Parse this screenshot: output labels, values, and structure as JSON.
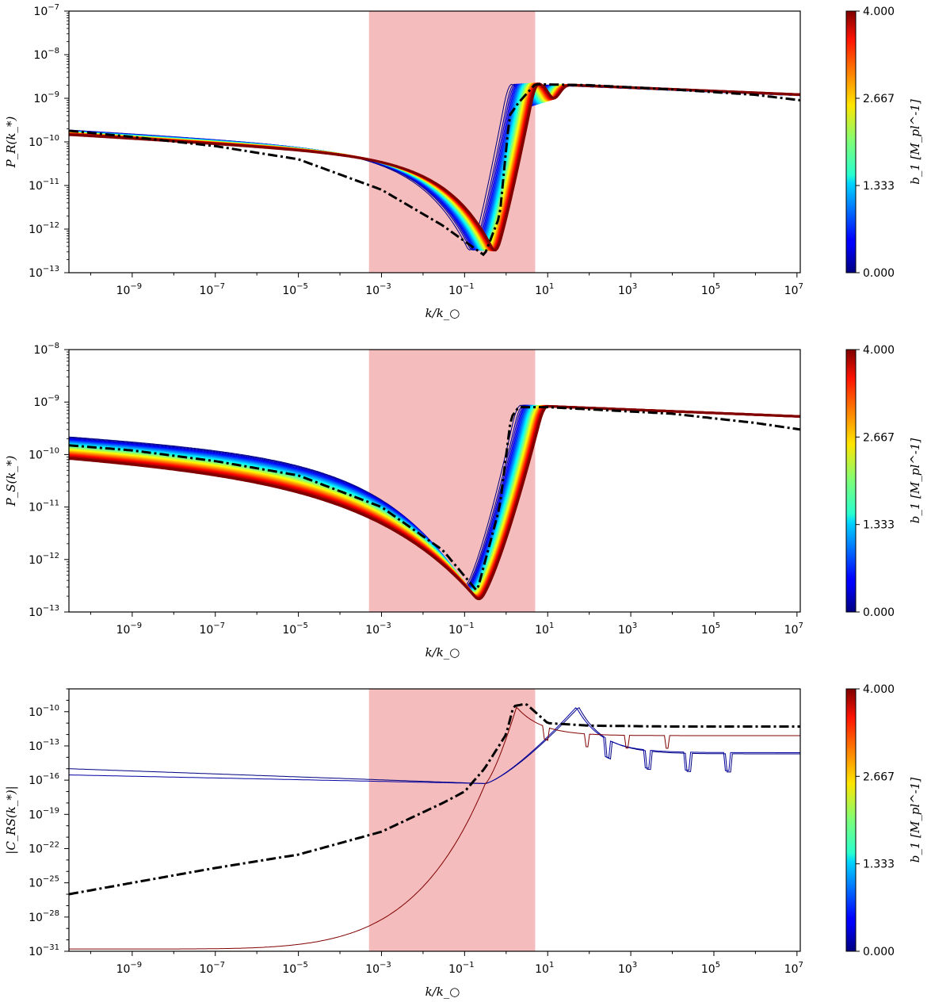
{
  "colorbar": {
    "label": "b_1 [M_pl^-1]",
    "ticks": [
      "0.000",
      "1.333",
      "2.667",
      "4.000"
    ],
    "range": [
      0,
      4
    ],
    "colormap": "jet"
  },
  "shaded_region": {
    "x_range": [
      0.0005,
      5
    ],
    "color": "#f4bcbc"
  },
  "chart_data": [
    {
      "type": "line",
      "panel": "top",
      "title": "",
      "xlabel": "k/k_○",
      "ylabel": "P_R(k_*)",
      "xscale": "log",
      "yscale": "log",
      "xlim": [
        3e-11,
        12000000.0
      ],
      "ylim": [
        1e-13,
        1e-07
      ],
      "xticks": [
        "10^-9",
        "10^-7",
        "10^-5",
        "10^-3",
        "10^-1",
        "10^1",
        "10^3",
        "10^5",
        "10^7"
      ],
      "yticks": [
        "10^-13",
        "10^-12",
        "10^-11",
        "10^-10",
        "10^-9",
        "10^-8",
        "10^-7"
      ],
      "reference_curve": {
        "style": "dashdot",
        "color": "#000000",
        "points": [
          [
            3e-11,
            1.8e-10
          ],
          [
            1e-09,
            1.3e-10
          ],
          [
            1e-07,
            8e-11
          ],
          [
            1e-05,
            4e-11
          ],
          [
            0.001,
            8e-12
          ],
          [
            0.03,
            1.2e-12
          ],
          [
            0.3,
            2.5e-13
          ],
          [
            0.7,
            2e-12
          ],
          [
            1.2,
            4e-10
          ],
          [
            2.0,
            8e-10
          ],
          [
            5,
            2.1e-09
          ],
          [
            100,
            2e-09
          ],
          [
            10000.0,
            1.6e-09
          ],
          [
            1000000.0,
            1.2e-09
          ],
          [
            12000000.0,
            9e-10
          ]
        ]
      }
    },
    {
      "type": "line",
      "panel": "middle",
      "title": "",
      "xlabel": "k/k_○",
      "ylabel": "P_S(k_*)",
      "xscale": "log",
      "yscale": "log",
      "xlim": [
        3e-11,
        12000000.0
      ],
      "ylim": [
        1e-13,
        1e-08
      ],
      "xticks": [
        "10^-9",
        "10^-7",
        "10^-5",
        "10^-3",
        "10^-1",
        "10^1",
        "10^3",
        "10^5",
        "10^7"
      ],
      "yticks": [
        "10^-13",
        "10^-12",
        "10^-11",
        "10^-10",
        "10^-9",
        "10^-8"
      ],
      "reference_curve": {
        "style": "dashdot",
        "color": "#000000",
        "points": [
          [
            3e-11,
            1.5e-10
          ],
          [
            1e-09,
            1.2e-10
          ],
          [
            1e-07,
            7.5e-11
          ],
          [
            1e-05,
            4e-11
          ],
          [
            0.001,
            1e-11
          ],
          [
            0.03,
            1.5e-12
          ],
          [
            0.2,
            2.5e-13
          ],
          [
            0.7,
            1e-11
          ],
          [
            1.3,
            5e-10
          ],
          [
            2.0,
            8e-10
          ],
          [
            10,
            8e-10
          ],
          [
            10000.0,
            6e-10
          ],
          [
            1000000.0,
            4e-10
          ],
          [
            12000000.0,
            3e-10
          ]
        ]
      }
    },
    {
      "type": "line",
      "panel": "bottom",
      "title": "",
      "xlabel": "k/k_○",
      "ylabel": "|C_RS(k_*)|",
      "xscale": "log",
      "yscale": "log",
      "xlim": [
        3e-11,
        12000000.0
      ],
      "ylim": [
        1e-31,
        1e-08
      ],
      "xticks": [
        "10^-9",
        "10^-7",
        "10^-5",
        "10^-3",
        "10^-1",
        "10^1",
        "10^3",
        "10^5",
        "10^7"
      ],
      "yticks": [
        "10^-31",
        "10^-28",
        "10^-25",
        "10^-22",
        "10^-19",
        "10^-16",
        "10^-13",
        "10^-10"
      ],
      "reference_curve": {
        "style": "dashdot",
        "color": "#000000",
        "points": [
          [
            3e-11,
            1e-26
          ],
          [
            1e-09,
            1e-25
          ],
          [
            1e-07,
            2e-24
          ],
          [
            1e-05,
            3e-23
          ],
          [
            0.001,
            3e-21
          ],
          [
            0.03,
            1e-18
          ],
          [
            0.1,
            1e-17
          ],
          [
            0.3,
            1e-15
          ],
          [
            1.0,
            1e-12
          ],
          [
            1.5,
            3e-10
          ],
          [
            3,
            5e-10
          ],
          [
            10,
            1e-11
          ],
          [
            100,
            6e-12
          ],
          [
            10000.0,
            5e-12
          ],
          [
            12000000.0,
            5e-12
          ]
        ]
      }
    }
  ]
}
